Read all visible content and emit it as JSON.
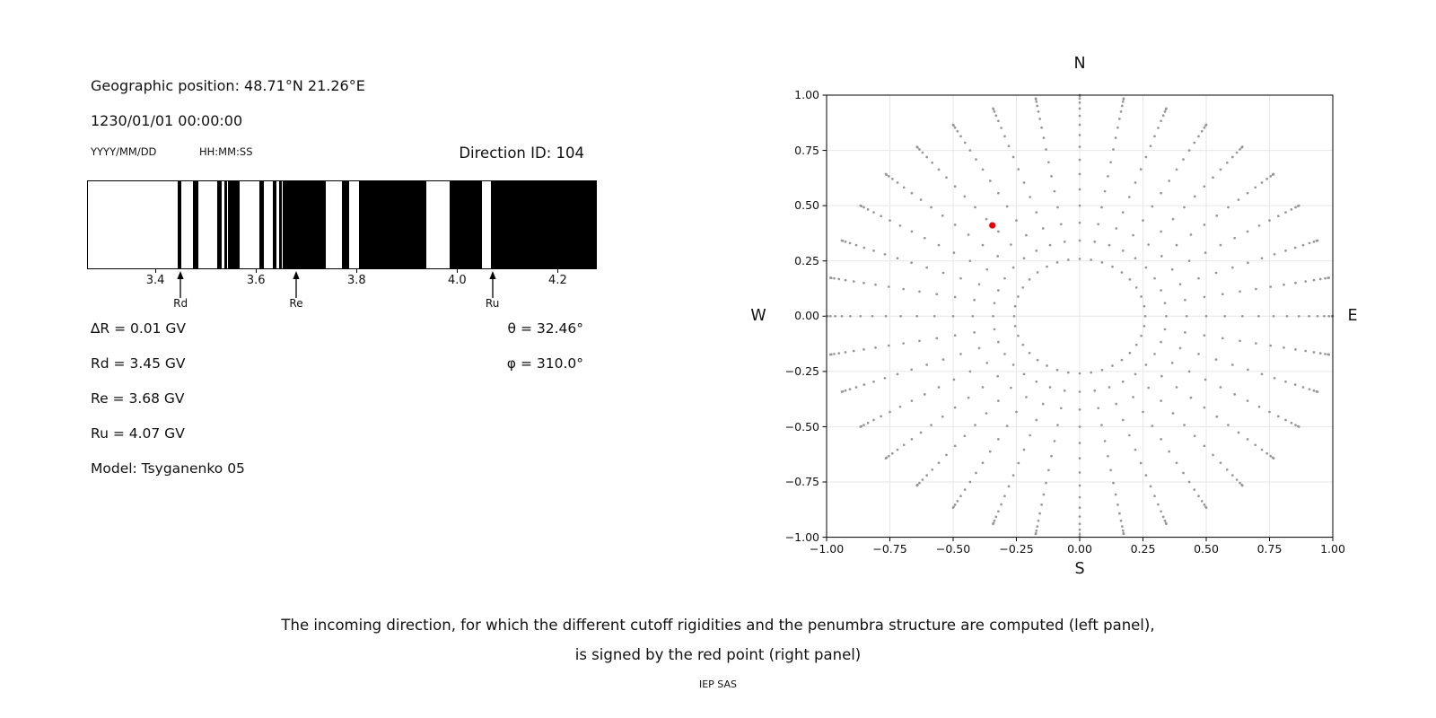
{
  "left_panel": {
    "geo_position": "Geographic position: 48.71°N 21.26°E",
    "datetime": "1230/01/01 00:00:00",
    "date_format": "YYYY/MM/DD",
    "time_format": "HH:MM:SS",
    "direction_id": "Direction ID: 104",
    "delta_r": "∆R = 0.01 GV",
    "rd": "Rd = 3.45 GV",
    "re": "Re = 3.68 GV",
    "ru": "Ru = 4.07 GV",
    "model": "Model: Tsyganenko 05",
    "theta": "θ = 32.46°",
    "phi": "φ = 310.0°"
  },
  "caption": {
    "line1": "The incoming direction, for which the different cutoff rigidities and the penumbra structure are computed (left panel),",
    "line2": "is signed by the red point (right panel)",
    "credit": "IEP SAS"
  },
  "chart_data": [
    {
      "type": "bar",
      "name": "penumbra-structure",
      "description": "Cutoff rigidity penumbra: black = forbidden rigidity bands, white = allowed",
      "xlim": [
        3.266,
        4.276
      ],
      "xticks": [
        3.4,
        3.6,
        3.8,
        4.0,
        4.2
      ],
      "black_intervals_gv": [
        [
          3.444,
          3.452
        ],
        [
          3.474,
          3.486
        ],
        [
          3.523,
          3.532
        ],
        [
          3.537,
          3.543
        ],
        [
          3.545,
          3.567
        ],
        [
          3.606,
          3.616
        ],
        [
          3.633,
          3.64
        ],
        [
          3.646,
          3.652
        ],
        [
          3.654,
          3.739
        ],
        [
          3.771,
          3.785
        ],
        [
          3.804,
          3.939
        ],
        [
          3.985,
          4.049
        ],
        [
          4.067,
          4.276
        ]
      ],
      "arrows": [
        {
          "label": "Rd",
          "value_gv": 3.45
        },
        {
          "label": "Re",
          "value_gv": 3.68
        },
        {
          "label": "Ru",
          "value_gv": 4.07
        }
      ],
      "values": {
        "delta_r_gv": 0.01,
        "rd_gv": 3.45,
        "re_gv": 3.68,
        "ru_gv": 4.07
      },
      "model": "Tsyganenko 05"
    },
    {
      "type": "scatter",
      "name": "incoming-directions-sky-map",
      "description": "Grid of incoming directions: rays every 10° azimuth, zenith rings 15°-90° step 5°, radius = sin(zenith). Red point = selected direction ID 104.",
      "xlim": [
        -1.0,
        1.0
      ],
      "ylim": [
        -1.0,
        1.0
      ],
      "xticks": [
        -1.0,
        -0.75,
        -0.5,
        -0.25,
        0.0,
        0.25,
        0.5,
        0.75,
        1.0
      ],
      "yticks": [
        -1.0,
        -0.75,
        -0.5,
        -0.25,
        0.0,
        0.25,
        0.5,
        0.75,
        1.0
      ],
      "grid_on": true,
      "direction_grid": {
        "azimuth_deg_start": 0,
        "azimuth_deg_step": 10,
        "azimuth_count": 36,
        "zenith_deg_start": 15,
        "zenith_deg_end": 90,
        "zenith_deg_step": 5,
        "radius_rule": "sin(zenith)"
      },
      "red_point": {
        "x": -0.345,
        "y": 0.411,
        "theta_deg": 32.46,
        "phi_deg": 310.0
      },
      "compass": {
        "top": "N",
        "bottom": "S",
        "left": "W",
        "right": "E"
      },
      "point_color": "#969696",
      "red_color": "#e8000b",
      "grid_color": "#e7e7e7"
    }
  ]
}
